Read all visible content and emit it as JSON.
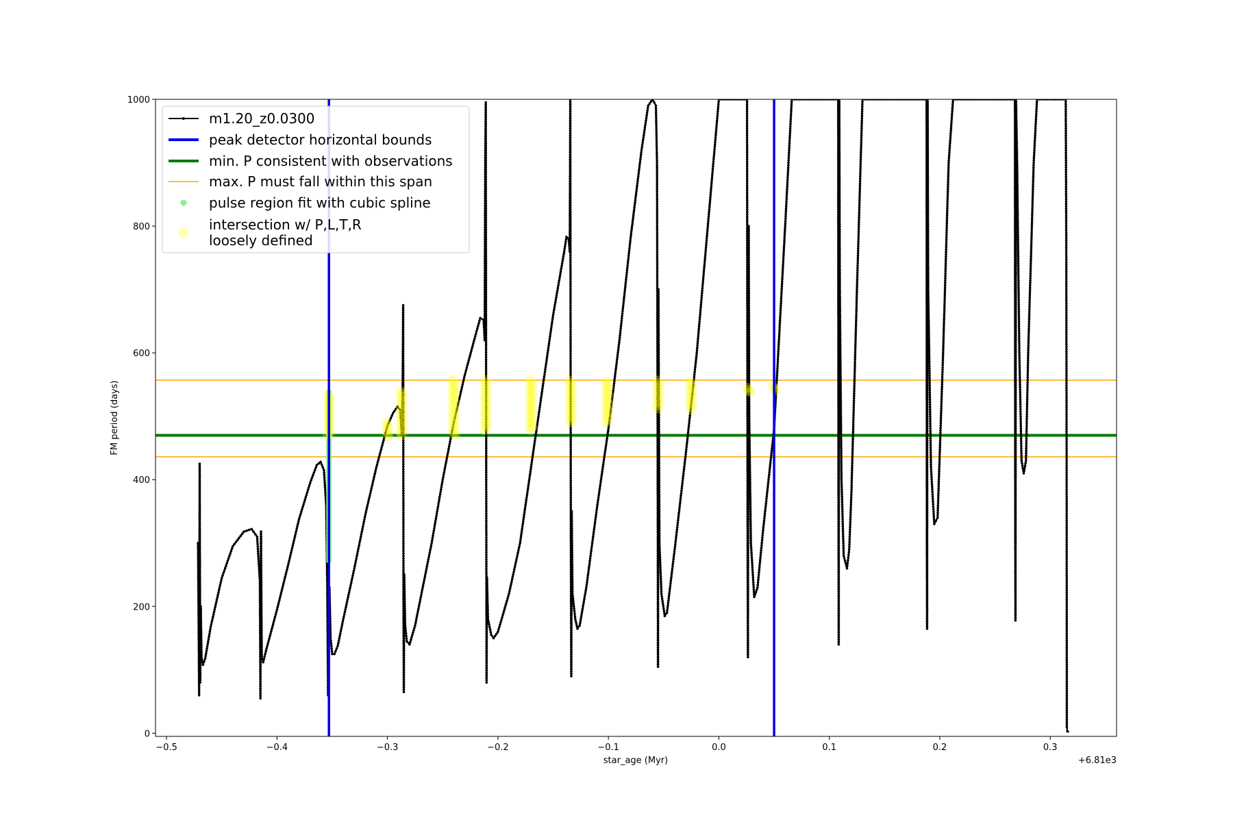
{
  "chart_data": {
    "type": "line",
    "xlabel": "star_age (Myr)",
    "ylabel": "FM period (days)",
    "x_offset_label": "+6.81e3",
    "xlim": [
      -0.51,
      0.36
    ],
    "ylim": [
      -5,
      1000
    ],
    "x_ticks": [
      {
        "value": -0.5,
        "label": "−0.5"
      },
      {
        "value": -0.4,
        "label": "−0.4"
      },
      {
        "value": -0.3,
        "label": "−0.3"
      },
      {
        "value": -0.2,
        "label": "−0.2"
      },
      {
        "value": -0.1,
        "label": "−0.1"
      },
      {
        "value": 0.0,
        "label": "0.0"
      },
      {
        "value": 0.1,
        "label": "0.1"
      },
      {
        "value": 0.2,
        "label": "0.2"
      },
      {
        "value": 0.3,
        "label": "0.3"
      }
    ],
    "y_ticks": [
      {
        "value": 0,
        "label": "0"
      },
      {
        "value": 200,
        "label": "200"
      },
      {
        "value": 400,
        "label": "400"
      },
      {
        "value": 600,
        "label": "600"
      },
      {
        "value": 800,
        "label": "800"
      },
      {
        "value": 1000,
        "label": "1000"
      }
    ],
    "legend_position": "top-left",
    "legend": [
      {
        "label": "m1.20_z0.0300",
        "kind": "line-marker",
        "color": "#000000"
      },
      {
        "label": "peak detector horizontal bounds",
        "kind": "thick-line",
        "color": "#0000ee"
      },
      {
        "label": "min. P consistent with observations",
        "kind": "thick-line",
        "color": "#007a00"
      },
      {
        "label": "max. P must fall within this span",
        "kind": "thin-line",
        "color": "#ffa500"
      },
      {
        "label": "pulse region fit with cubic spline",
        "kind": "dot",
        "color": "#90ee90"
      },
      {
        "label": "intersection w/ P,L,T,R",
        "label2": "loosely defined",
        "kind": "big-dot",
        "color": "#ffffbb"
      }
    ],
    "vlines": [
      -0.353,
      0.05
    ],
    "hline_green": 470,
    "hlines_orange": [
      557,
      436
    ],
    "series": {
      "color": "#000000",
      "points": [
        [
          -0.4715,
          300
        ],
        [
          -0.4705,
          60
        ],
        [
          -0.47,
          425
        ],
        [
          -0.4695,
          80
        ],
        [
          -0.469,
          200
        ],
        [
          -0.4683,
          120
        ],
        [
          -0.467,
          108
        ],
        [
          -0.465,
          118
        ],
        [
          -0.46,
          168
        ],
        [
          -0.45,
          245
        ],
        [
          -0.44,
          295
        ],
        [
          -0.43,
          318
        ],
        [
          -0.423,
          322
        ],
        [
          -0.418,
          310
        ],
        [
          -0.4155,
          240
        ],
        [
          -0.415,
          55
        ],
        [
          -0.4145,
          318
        ],
        [
          -0.4138,
          120
        ],
        [
          -0.4125,
          112
        ],
        [
          -0.41,
          130
        ],
        [
          -0.4,
          195
        ],
        [
          -0.39,
          265
        ],
        [
          -0.38,
          338
        ],
        [
          -0.37,
          395
        ],
        [
          -0.364,
          423
        ],
        [
          -0.3605,
          428
        ],
        [
          -0.3575,
          415
        ],
        [
          -0.3555,
          360
        ],
        [
          -0.3545,
          230
        ],
        [
          -0.3538,
          60
        ],
        [
          -0.3532,
          195
        ],
        [
          -0.3525,
          230
        ],
        [
          -0.3515,
          150
        ],
        [
          -0.35,
          125
        ],
        [
          -0.348,
          125
        ],
        [
          -0.345,
          138
        ],
        [
          -0.34,
          180
        ],
        [
          -0.33,
          260
        ],
        [
          -0.32,
          345
        ],
        [
          -0.31,
          420
        ],
        [
          -0.3,
          485
        ],
        [
          -0.295,
          505
        ],
        [
          -0.291,
          515
        ],
        [
          -0.2885,
          510
        ],
        [
          -0.287,
          470
        ],
        [
          -0.2862,
          560
        ],
        [
          -0.2858,
          675
        ],
        [
          -0.2855,
          200
        ],
        [
          -0.2852,
          65
        ],
        [
          -0.2848,
          250
        ],
        [
          -0.284,
          170
        ],
        [
          -0.2825,
          145
        ],
        [
          -0.28,
          140
        ],
        [
          -0.275,
          170
        ],
        [
          -0.26,
          300
        ],
        [
          -0.25,
          400
        ],
        [
          -0.24,
          490
        ],
        [
          -0.23,
          565
        ],
        [
          -0.22,
          630
        ],
        [
          -0.216,
          655
        ],
        [
          -0.213,
          652
        ],
        [
          -0.212,
          620
        ],
        [
          -0.2115,
          900
        ],
        [
          -0.211,
          995
        ],
        [
          -0.2106,
          400
        ],
        [
          -0.2103,
          80
        ],
        [
          -0.2099,
          245
        ],
        [
          -0.209,
          180
        ],
        [
          -0.206,
          155
        ],
        [
          -0.204,
          150
        ],
        [
          -0.2,
          160
        ],
        [
          -0.19,
          220
        ],
        [
          -0.18,
          300
        ],
        [
          -0.17,
          420
        ],
        [
          -0.16,
          540
        ],
        [
          -0.15,
          660
        ],
        [
          -0.14,
          760
        ],
        [
          -0.138,
          783
        ],
        [
          -0.136,
          780
        ],
        [
          -0.135,
          760
        ],
        [
          -0.1345,
          1000
        ],
        [
          -0.134,
          300
        ],
        [
          -0.1336,
          90
        ],
        [
          -0.1332,
          350
        ],
        [
          -0.1325,
          220
        ],
        [
          -0.13,
          180
        ],
        [
          -0.128,
          165
        ],
        [
          -0.126,
          170
        ],
        [
          -0.12,
          230
        ],
        [
          -0.11,
          360
        ],
        [
          -0.1,
          480
        ],
        [
          -0.09,
          620
        ],
        [
          -0.08,
          780
        ],
        [
          -0.07,
          920
        ],
        [
          -0.064,
          990
        ],
        [
          -0.06,
          1000
        ],
        [
          -0.057,
          990
        ],
        [
          -0.056,
          900
        ],
        [
          -0.0555,
          500
        ],
        [
          -0.0551,
          105
        ],
        [
          -0.0547,
          700
        ],
        [
          -0.0538,
          300
        ],
        [
          -0.052,
          220
        ],
        [
          -0.049,
          185
        ],
        [
          -0.047,
          190
        ],
        [
          -0.04,
          290
        ],
        [
          -0.03,
          440
        ],
        [
          -0.02,
          600
        ],
        [
          -0.01,
          800
        ],
        [
          0.0,
          1000
        ],
        [
          0.0255,
          1000
        ],
        [
          0.026,
          300
        ],
        [
          0.0263,
          120
        ],
        [
          0.0267,
          600
        ],
        [
          0.027,
          800
        ],
        [
          0.0275,
          500
        ],
        [
          0.029,
          300
        ],
        [
          0.032,
          215
        ],
        [
          0.035,
          230
        ],
        [
          0.04,
          320
        ],
        [
          0.05,
          480
        ],
        [
          0.06,
          800
        ],
        [
          0.066,
          1000
        ],
        [
          0.108,
          1000
        ],
        [
          0.1083,
          300
        ],
        [
          0.1085,
          140
        ],
        [
          0.1088,
          800
        ],
        [
          0.109,
          1000
        ],
        [
          0.1095,
          700
        ],
        [
          0.111,
          400
        ],
        [
          0.113,
          280
        ],
        [
          0.116,
          260
        ],
        [
          0.118,
          290
        ],
        [
          0.12,
          380
        ],
        [
          0.125,
          700
        ],
        [
          0.13,
          1000
        ],
        [
          0.188,
          1000
        ],
        [
          0.1883,
          300
        ],
        [
          0.1885,
          165
        ],
        [
          0.1888,
          800
        ],
        [
          0.189,
          1000
        ],
        [
          0.1895,
          700
        ],
        [
          0.192,
          420
        ],
        [
          0.195,
          330
        ],
        [
          0.198,
          340
        ],
        [
          0.203,
          600
        ],
        [
          0.208,
          900
        ],
        [
          0.212,
          1000
        ],
        [
          0.268,
          1000
        ],
        [
          0.2683,
          300
        ],
        [
          0.2685,
          178
        ],
        [
          0.2688,
          700
        ],
        [
          0.269,
          1000
        ],
        [
          0.27,
          900
        ],
        [
          0.272,
          600
        ],
        [
          0.274,
          430
        ],
        [
          0.276,
          410
        ],
        [
          0.278,
          430
        ],
        [
          0.28,
          600
        ],
        [
          0.285,
          900
        ],
        [
          0.288,
          1000
        ],
        [
          0.314,
          1000
        ],
        [
          0.3145,
          770
        ],
        [
          0.3148,
          430
        ],
        [
          0.315,
          10
        ],
        [
          0.3155,
          3
        ],
        [
          0.317,
          2
        ]
      ]
    },
    "spline_points": {
      "x": -0.353,
      "y_values": [
        280,
        300,
        320,
        340,
        360,
        380,
        400,
        420,
        440,
        460,
        480,
        500,
        520,
        530
      ]
    },
    "intersections": [
      {
        "x": -0.353,
        "y_low": 470,
        "y_high": 535
      },
      {
        "x": -0.3,
        "y_low": 468,
        "y_high": 490
      },
      {
        "x": -0.287,
        "y_low": 470,
        "y_high": 540
      },
      {
        "x": -0.24,
        "y_low": 470,
        "y_high": 557
      },
      {
        "x": -0.211,
        "y_low": 478,
        "y_high": 557
      },
      {
        "x": -0.17,
        "y_low": 478,
        "y_high": 557
      },
      {
        "x": -0.134,
        "y_low": 490,
        "y_high": 557
      },
      {
        "x": -0.101,
        "y_low": 490,
        "y_high": 555
      },
      {
        "x": -0.055,
        "y_low": 512,
        "y_high": 557
      },
      {
        "x": -0.025,
        "y_low": 510,
        "y_high": 555
      },
      {
        "x": 0.027,
        "y_low": 538,
        "y_high": 545
      },
      {
        "x": 0.05,
        "y_low": 540,
        "y_high": 548
      }
    ]
  }
}
